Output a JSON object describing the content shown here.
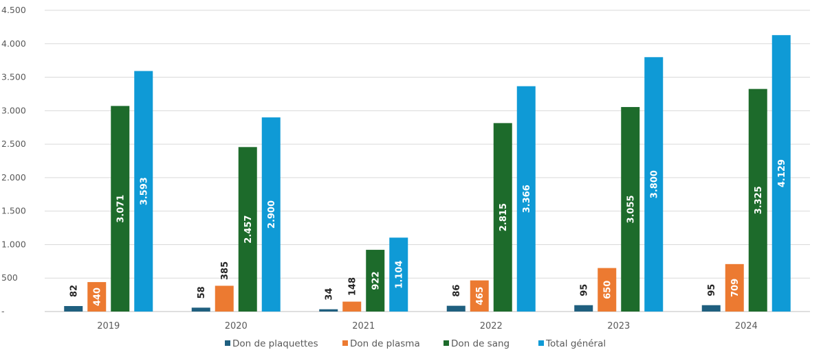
{
  "chart_data": {
    "type": "bar",
    "categories": [
      "2019",
      "2020",
      "2021",
      "2022",
      "2023",
      "2024"
    ],
    "series": [
      {
        "name": "Don de plaquettes",
        "color": "#1f5f7f",
        "values": [
          82,
          58,
          34,
          86,
          95,
          95
        ],
        "labels": [
          "82",
          "58",
          "34",
          "86",
          "95",
          "95"
        ],
        "label_color": "#404040",
        "label_inside": false
      },
      {
        "name": "Don de plasma",
        "color": "#ec7a31",
        "values": [
          440,
          385,
          148,
          465,
          650,
          709
        ],
        "labels": [
          "440",
          "385",
          "148",
          "465",
          "650",
          "709"
        ],
        "label_color": "#ffffff",
        "label_inside": true
      },
      {
        "name": "Don de sang",
        "color": "#1d6b2b",
        "values": [
          3071,
          2457,
          922,
          2815,
          3055,
          3325
        ],
        "labels": [
          "3.071",
          "2.457",
          "922",
          "2.815",
          "3.055",
          "3.325"
        ],
        "label_color": "#ffffff",
        "label_inside": true
      },
      {
        "name": "Total général",
        "color": "#0f9ad6",
        "values": [
          3593,
          2900,
          1104,
          3366,
          3800,
          4129
        ],
        "labels": [
          "3.593",
          "2.900",
          "1.104",
          "3.366",
          "3.800",
          "4.129"
        ],
        "label_color": "#ffffff",
        "label_inside": true
      }
    ],
    "ylim": [
      0,
      4500
    ],
    "yticks": [
      {
        "value": 4500,
        "label": "4.500"
      },
      {
        "value": 4000,
        "label": "4.000"
      },
      {
        "value": 3500,
        "label": "3.500"
      },
      {
        "value": 3000,
        "label": "3.000"
      },
      {
        "value": 2500,
        "label": "2.500"
      },
      {
        "value": 2000,
        "label": "2.000"
      },
      {
        "value": 1500,
        "label": "1.500"
      },
      {
        "value": 1000,
        "label": "1.000"
      },
      {
        "value": 500,
        "label": "500"
      },
      {
        "value": 0,
        "label": "-"
      }
    ],
    "title": "",
    "xlabel": "",
    "ylabel": "",
    "grid": true,
    "legend_position": "bottom"
  }
}
